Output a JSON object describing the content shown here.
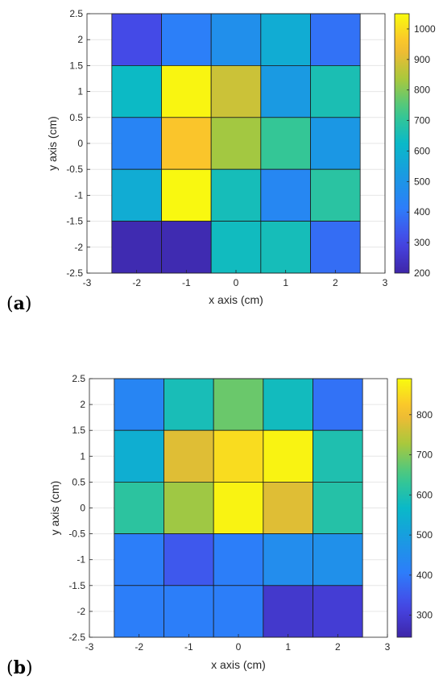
{
  "panels": [
    {
      "label_prefix": "(",
      "label_letter": "a",
      "label_suffix": ")",
      "chart_data": {
        "type": "heatmap",
        "xlabel": "x axis (cm)",
        "ylabel": "y axis (cm)",
        "xlim": [
          -3,
          3
        ],
        "ylim": [
          -2.5,
          2.5
        ],
        "xticks": [
          "-3",
          "-2",
          "-1",
          "0",
          "1",
          "2",
          "3"
        ],
        "yticks": [
          "2.5",
          "2",
          "1.5",
          "1",
          "0.5",
          "0",
          "-0.5",
          "-1",
          "-1.5",
          "-2",
          "-2.5"
        ],
        "x": [
          -2,
          -1,
          0,
          1,
          2
        ],
        "y": [
          2,
          1,
          0,
          -1,
          -2
        ],
        "z": [
          [
            310,
            420,
            480,
            580,
            390
          ],
          [
            630,
            1040,
            880,
            520,
            660
          ],
          [
            440,
            960,
            830,
            710,
            510
          ],
          [
            580,
            1045,
            650,
            450,
            690
          ],
          [
            215,
            215,
            640,
            650,
            380
          ]
        ],
        "colorbar": {
          "range": [
            200,
            1050
          ],
          "ticks": [
            "1000",
            "900",
            "800",
            "700",
            "600",
            "500",
            "400",
            "300",
            "200"
          ]
        },
        "grid": true
      }
    },
    {
      "label_prefix": "(",
      "label_letter": "b",
      "label_suffix": ")",
      "chart_data": {
        "type": "heatmap",
        "xlabel": "x axis (cm)",
        "ylabel": "y axis (cm)",
        "xlim": [
          -3,
          3
        ],
        "ylim": [
          -2.5,
          2.5
        ],
        "xticks": [
          "-3",
          "-2",
          "-1",
          "0",
          "1",
          "2",
          "3"
        ],
        "yticks": [
          "2.5",
          "2",
          "1.5",
          "1",
          "0.5",
          "0",
          "-0.5",
          "-1",
          "-1.5",
          "-2",
          "-2.5"
        ],
        "x": [
          -2,
          -1,
          0,
          1,
          2
        ],
        "y": [
          2,
          1,
          0,
          -1,
          -2
        ],
        "z": [
          [
            430,
            590,
            680,
            580,
            390
          ],
          [
            540,
            780,
            850,
            880,
            600
          ],
          [
            620,
            720,
            880,
            780,
            610
          ],
          [
            410,
            350,
            410,
            450,
            460
          ],
          [
            410,
            410,
            410,
            290,
            300
          ]
        ],
        "colorbar": {
          "range": [
            245,
            890
          ],
          "ticks": [
            "800",
            "700",
            "600",
            "500",
            "400",
            "300"
          ]
        },
        "grid": true
      }
    }
  ]
}
